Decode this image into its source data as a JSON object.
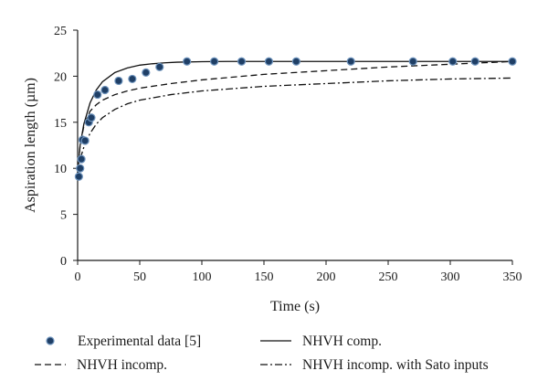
{
  "chart_data": {
    "type": "line",
    "title": "",
    "xlabel": "Time (s)",
    "ylabel": "Aspiration length (µm)",
    "xlim": [
      0,
      350
    ],
    "ylim": [
      0,
      25
    ],
    "x_ticks": [
      0,
      50,
      100,
      150,
      200,
      250,
      300,
      350
    ],
    "y_ticks": [
      0,
      5,
      10,
      15,
      20,
      25
    ],
    "grid": false,
    "legend_position": "bottom",
    "series": [
      {
        "name": "Experimental data [5]",
        "style": "markers",
        "color": "#1f3f66",
        "x": [
          1,
          2,
          3,
          4,
          6,
          9,
          11,
          16,
          22,
          33,
          44,
          55,
          66,
          88,
          110,
          132,
          154,
          176,
          220,
          270,
          302,
          320,
          350
        ],
        "y": [
          9.1,
          10.0,
          11.0,
          13.1,
          13.0,
          15.0,
          15.5,
          18.0,
          18.5,
          19.5,
          19.7,
          20.4,
          21.0,
          21.6,
          21.6,
          21.6,
          21.6,
          21.6,
          21.6,
          21.6,
          21.6,
          21.6,
          21.6
        ]
      },
      {
        "name": "NHVH comp.",
        "style": "solid",
        "color": "#111111",
        "x": [
          0,
          2,
          5,
          10,
          15,
          20,
          30,
          40,
          50,
          60,
          70,
          80,
          100,
          120,
          150,
          200,
          250,
          300,
          350
        ],
        "y": [
          9.5,
          12.5,
          14.8,
          17.1,
          18.5,
          19.4,
          20.4,
          20.9,
          21.2,
          21.35,
          21.45,
          21.52,
          21.58,
          21.6,
          21.6,
          21.6,
          21.6,
          21.6,
          21.6
        ]
      },
      {
        "name": "NHVH incomp.",
        "style": "dashed",
        "color": "#111111",
        "x": [
          0,
          2,
          5,
          10,
          15,
          20,
          30,
          40,
          50,
          75,
          100,
          150,
          200,
          250,
          300,
          350
        ],
        "y": [
          9.5,
          12.5,
          14.6,
          16.2,
          16.9,
          17.4,
          18.0,
          18.4,
          18.7,
          19.2,
          19.6,
          20.2,
          20.6,
          21.0,
          21.3,
          21.6
        ]
      },
      {
        "name": "NHVH incomp. with Sato inputs",
        "style": "dashdot",
        "color": "#111111",
        "x": [
          0,
          2,
          5,
          10,
          15,
          20,
          30,
          40,
          50,
          75,
          100,
          150,
          200,
          250,
          300,
          350
        ],
        "y": [
          9.5,
          11.0,
          12.3,
          13.8,
          14.8,
          15.5,
          16.4,
          17.0,
          17.4,
          18.0,
          18.4,
          18.9,
          19.2,
          19.5,
          19.7,
          19.8
        ]
      }
    ]
  }
}
